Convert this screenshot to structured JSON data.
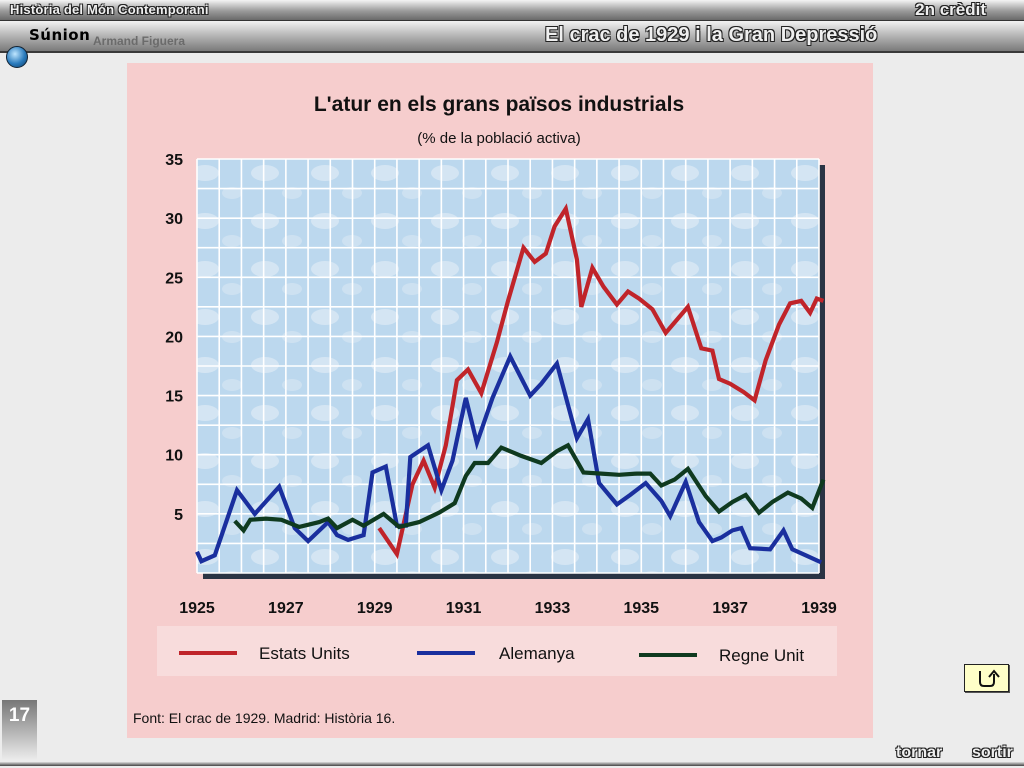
{
  "header": {
    "course_title": "Història del Món Contemporani",
    "credit": "2n crèdit",
    "lesson_title": "El crac de 1929 i la Gran Depressió",
    "logo_text": "Súnion",
    "author": "Armand Figuera"
  },
  "footer": {
    "slide_number": "17",
    "back_label": "tornar",
    "exit_label": "sortir"
  },
  "colors": {
    "estats_units": "#c0242a",
    "alemanya": "#1a2f9e",
    "regne_unit": "#0f3a1f",
    "plot_bg": "#bcd8ee",
    "frame_bg": "#f6cdcd"
  },
  "icons": {
    "reload": "reload-arrow-icon",
    "logo": "globe-logo-icon"
  },
  "chart_data": {
    "type": "line",
    "title": "L'atur en els grans països industrials",
    "subtitle": "(% de la població activa)",
    "source": "Font: El crac de 1929. Madrid: Història 16.",
    "xlim": [
      1925,
      1939
    ],
    "ylim": [
      0,
      35
    ],
    "x_ticks": [
      "1925",
      "1927",
      "1929",
      "1931",
      "1933",
      "1935",
      "1937",
      "1939"
    ],
    "y_ticks": [
      "35",
      "30",
      "25",
      "20",
      "15",
      "10",
      "5"
    ],
    "grid": true,
    "legend_position": "bottom",
    "series": [
      {
        "name": "Estats Units",
        "color": "#c0242a",
        "points": [
          [
            1929.1,
            3.8
          ],
          [
            1929.5,
            1.6
          ],
          [
            1929.85,
            7.5
          ],
          [
            1930.1,
            9.5
          ],
          [
            1930.35,
            7.2
          ],
          [
            1930.6,
            10.8
          ],
          [
            1930.85,
            16.3
          ],
          [
            1931.1,
            17.2
          ],
          [
            1931.4,
            15.2
          ],
          [
            1931.75,
            19.5
          ],
          [
            1932.0,
            23.0
          ],
          [
            1932.35,
            27.5
          ],
          [
            1932.6,
            26.3
          ],
          [
            1932.85,
            27.0
          ],
          [
            1933.05,
            29.3
          ],
          [
            1933.3,
            30.8
          ],
          [
            1933.55,
            26.5
          ],
          [
            1933.65,
            22.5
          ],
          [
            1933.9,
            25.8
          ],
          [
            1934.15,
            24.2
          ],
          [
            1934.45,
            22.7
          ],
          [
            1934.7,
            23.8
          ],
          [
            1934.95,
            23.2
          ],
          [
            1935.25,
            22.3
          ],
          [
            1935.55,
            20.3
          ],
          [
            1935.8,
            21.4
          ],
          [
            1936.05,
            22.5
          ],
          [
            1936.35,
            19.0
          ],
          [
            1936.6,
            18.8
          ],
          [
            1936.75,
            16.4
          ],
          [
            1937.0,
            16.0
          ],
          [
            1937.3,
            15.3
          ],
          [
            1937.55,
            14.6
          ],
          [
            1937.8,
            18.0
          ],
          [
            1938.1,
            21.0
          ],
          [
            1938.35,
            22.8
          ],
          [
            1938.6,
            23.0
          ],
          [
            1938.8,
            22.0
          ],
          [
            1938.95,
            23.2
          ],
          [
            1939.1,
            23.0
          ]
        ]
      },
      {
        "name": "Alemanya",
        "color": "#1a2f9e",
        "points": [
          [
            1925.0,
            1.8
          ],
          [
            1925.1,
            1.0
          ],
          [
            1925.4,
            1.5
          ],
          [
            1925.9,
            7.0
          ],
          [
            1926.3,
            5.0
          ],
          [
            1926.85,
            7.3
          ],
          [
            1927.2,
            3.8
          ],
          [
            1927.5,
            2.7
          ],
          [
            1927.95,
            4.3
          ],
          [
            1928.15,
            3.2
          ],
          [
            1928.4,
            2.8
          ],
          [
            1928.75,
            3.2
          ],
          [
            1928.95,
            8.5
          ],
          [
            1929.25,
            9.0
          ],
          [
            1929.5,
            4.0
          ],
          [
            1929.7,
            4.0
          ],
          [
            1929.8,
            9.8
          ],
          [
            1930.2,
            10.8
          ],
          [
            1930.5,
            7.0
          ],
          [
            1930.75,
            9.5
          ],
          [
            1931.05,
            14.8
          ],
          [
            1931.3,
            11.0
          ],
          [
            1931.65,
            14.8
          ],
          [
            1932.05,
            18.3
          ],
          [
            1932.5,
            15.0
          ],
          [
            1932.75,
            16.0
          ],
          [
            1933.1,
            17.7
          ],
          [
            1933.55,
            11.4
          ],
          [
            1933.8,
            13.0
          ],
          [
            1934.05,
            7.6
          ],
          [
            1934.45,
            5.8
          ],
          [
            1934.75,
            6.6
          ],
          [
            1935.1,
            7.6
          ],
          [
            1935.45,
            6.1
          ],
          [
            1935.65,
            4.8
          ],
          [
            1936.0,
            7.7
          ],
          [
            1936.3,
            4.3
          ],
          [
            1936.6,
            2.7
          ],
          [
            1936.8,
            3.0
          ],
          [
            1937.05,
            3.6
          ],
          [
            1937.25,
            3.8
          ],
          [
            1937.45,
            2.1
          ],
          [
            1937.9,
            2.0
          ],
          [
            1938.2,
            3.6
          ],
          [
            1938.4,
            2.0
          ],
          [
            1938.7,
            1.5
          ],
          [
            1939.05,
            0.9
          ]
        ]
      },
      {
        "name": "Regne Unit",
        "color": "#0f3a1f",
        "points": [
          [
            1925.85,
            4.4
          ],
          [
            1926.05,
            3.6
          ],
          [
            1926.2,
            4.5
          ],
          [
            1926.55,
            4.6
          ],
          [
            1926.9,
            4.5
          ],
          [
            1927.3,
            3.9
          ],
          [
            1927.75,
            4.3
          ],
          [
            1927.95,
            4.6
          ],
          [
            1928.15,
            3.8
          ],
          [
            1928.5,
            4.5
          ],
          [
            1928.75,
            4.0
          ],
          [
            1929.2,
            5.0
          ],
          [
            1929.55,
            3.9
          ],
          [
            1930.0,
            4.3
          ],
          [
            1930.45,
            5.1
          ],
          [
            1930.8,
            5.9
          ],
          [
            1931.05,
            8.2
          ],
          [
            1931.25,
            9.3
          ],
          [
            1931.55,
            9.3
          ],
          [
            1931.85,
            10.6
          ],
          [
            1932.3,
            9.9
          ],
          [
            1932.75,
            9.3
          ],
          [
            1933.1,
            10.3
          ],
          [
            1933.35,
            10.8
          ],
          [
            1933.7,
            8.5
          ],
          [
            1934.1,
            8.4
          ],
          [
            1934.5,
            8.3
          ],
          [
            1934.9,
            8.4
          ],
          [
            1935.2,
            8.4
          ],
          [
            1935.45,
            7.4
          ],
          [
            1935.75,
            7.9
          ],
          [
            1936.05,
            8.8
          ],
          [
            1936.45,
            6.5
          ],
          [
            1936.75,
            5.2
          ],
          [
            1937.05,
            6.0
          ],
          [
            1937.35,
            6.6
          ],
          [
            1937.65,
            5.1
          ],
          [
            1937.95,
            6.0
          ],
          [
            1938.3,
            6.8
          ],
          [
            1938.6,
            6.3
          ],
          [
            1938.85,
            5.5
          ],
          [
            1939.1,
            7.9
          ]
        ]
      }
    ]
  }
}
